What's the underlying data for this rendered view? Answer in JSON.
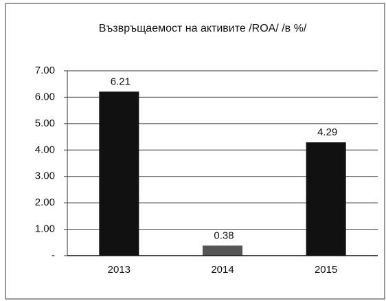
{
  "chart_data": {
    "type": "bar",
    "title": "Възвръщаемост на активите /ROA/ /в %/",
    "categories": [
      "2013",
      "2014",
      "2015"
    ],
    "values": [
      6.21,
      0.38,
      4.29
    ],
    "colors": [
      "#111111",
      "#555555",
      "#111111"
    ],
    "ylim": [
      0,
      7
    ],
    "yticks": [
      {
        "value": 0,
        "label": "-"
      },
      {
        "value": 1,
        "label": "1.00"
      },
      {
        "value": 2,
        "label": "2.00"
      },
      {
        "value": 3,
        "label": "3.00"
      },
      {
        "value": 4,
        "label": "4.00"
      },
      {
        "value": 5,
        "label": "5.00"
      },
      {
        "value": 6,
        "label": "6.00"
      },
      {
        "value": 7,
        "label": "7.00"
      }
    ],
    "grid": true
  }
}
